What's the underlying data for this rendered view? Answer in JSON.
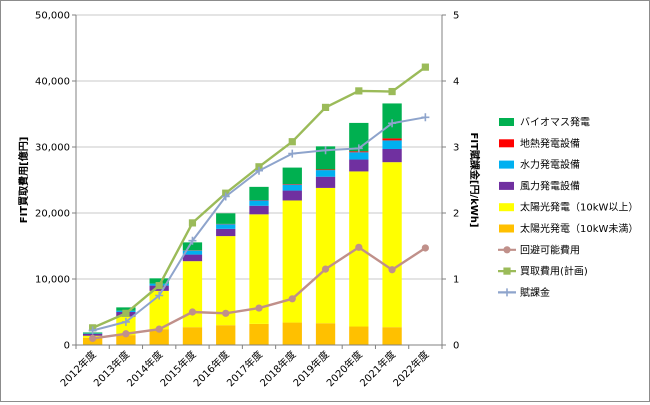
{
  "chart_data": {
    "type": "bar",
    "categories": [
      "2012年度",
      "2013年度",
      "2014年度",
      "2015年度",
      "2016年度",
      "2017年度",
      "2018年度",
      "2019年度",
      "2020年度",
      "2021年度",
      "2022年度"
    ],
    "ylabel": "FIT買取費用[億円]",
    "y2label": "FIT賦課金[円/kWh]",
    "ylim": [
      0,
      50000
    ],
    "y2lim": [
      0,
      5
    ],
    "yticks": [
      "0",
      "10,000",
      "20,000",
      "30,000",
      "40,000",
      "50,000"
    ],
    "y2ticks": [
      "0",
      "1",
      "2",
      "3",
      "4",
      "5"
    ],
    "grid": true,
    "legend_position": "right",
    "bar_series": [
      {
        "name": "バイオマス発電",
        "color": "#00b050",
        "values": [
          150,
          500,
          800,
          1200,
          1600,
          2000,
          2500,
          3500,
          4300,
          5300,
          0
        ]
      },
      {
        "name": "地熱発電設備",
        "color": "#ff0000",
        "values": [
          0,
          0,
          0,
          50,
          50,
          60,
          80,
          100,
          150,
          300,
          0
        ]
      },
      {
        "name": "水力発電設備",
        "color": "#00b0f0",
        "values": [
          50,
          200,
          300,
          600,
          700,
          800,
          900,
          1000,
          1100,
          1300,
          0
        ]
      },
      {
        "name": "風力発電設備",
        "color": "#7030a0",
        "values": [
          300,
          700,
          800,
          1000,
          1100,
          1300,
          1500,
          1700,
          1800,
          2000,
          0
        ]
      },
      {
        "name": "太陽光発電（10kW以上）",
        "color": "#ffff00",
        "values": [
          300,
          2800,
          5800,
          10000,
          13500,
          16600,
          18500,
          20500,
          23500,
          25000,
          0
        ]
      },
      {
        "name": "太陽光発電（10kW未満）",
        "color": "#ffc000",
        "values": [
          1100,
          1500,
          2400,
          2700,
          3000,
          3200,
          3400,
          3300,
          2800,
          2700,
          0
        ]
      }
    ],
    "line_series": [
      {
        "name": "回避可能費用",
        "color": "#c0908a",
        "marker": "circle",
        "values": [
          0.1,
          0.17,
          0.24,
          0.5,
          0.48,
          0.56,
          0.7,
          1.15,
          1.48,
          1.14,
          1.47
        ]
      },
      {
        "name": "買取費用(計画)",
        "color": "#9bbb59",
        "marker": "square",
        "values": [
          0.26,
          0.48,
          0.9,
          1.85,
          2.3,
          2.7,
          3.08,
          3.6,
          3.85,
          3.84,
          4.21
        ]
      },
      {
        "name": "賦課金",
        "color": "#8ea4cc",
        "marker": "plus",
        "values": [
          0.22,
          0.35,
          0.75,
          1.58,
          2.25,
          2.64,
          2.9,
          2.95,
          2.98,
          3.36,
          3.45
        ]
      }
    ]
  }
}
